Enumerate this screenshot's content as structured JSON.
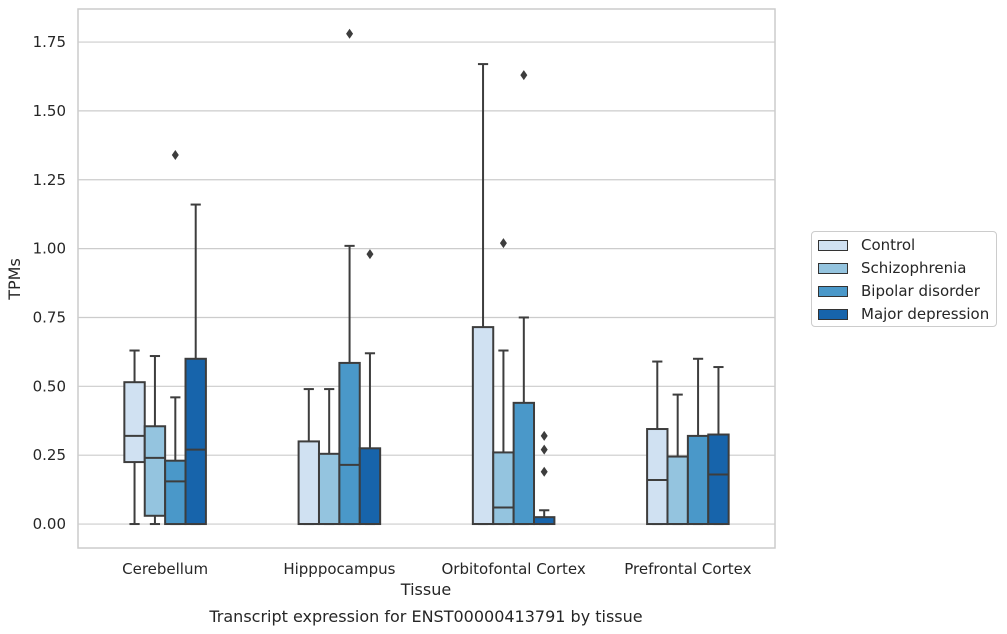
{
  "chart_data": {
    "type": "box",
    "title": "Transcript expression for ENST00000413791 by tissue",
    "xlabel": "Tissue",
    "ylabel": "TPMs",
    "ylim": [
      -0.087,
      1.87
    ],
    "yticks": [
      0.0,
      0.25,
      0.5,
      0.75,
      1.0,
      1.25,
      1.5,
      1.75
    ],
    "ytick_labels": [
      "0.00",
      "0.25",
      "0.50",
      "0.75",
      "1.00",
      "1.25",
      "1.50",
      "1.75"
    ],
    "categories": [
      "Cerebellum",
      "Hipppocampus",
      "Orbitofontal Cortex",
      "Prefrontal Cortex"
    ],
    "grid": "horizontal",
    "legend_position": "right",
    "series": [
      {
        "name": "Control",
        "color": "#d0e1f2",
        "boxes": [
          {
            "q1": 0.225,
            "median": 0.32,
            "q3": 0.515,
            "whisker_low": 0.0,
            "whisker_high": 0.63,
            "outliers": []
          },
          {
            "q1": 0.0,
            "median": 0.0,
            "q3": 0.3,
            "whisker_low": 0.0,
            "whisker_high": 0.49,
            "outliers": []
          },
          {
            "q1": 0.0,
            "median": 0.0,
            "q3": 0.715,
            "whisker_low": 0.0,
            "whisker_high": 1.67,
            "outliers": []
          },
          {
            "q1": 0.0,
            "median": 0.16,
            "q3": 0.345,
            "whisker_low": 0.0,
            "whisker_high": 0.59,
            "outliers": []
          }
        ]
      },
      {
        "name": "Schizophrenia",
        "color": "#94c4df",
        "boxes": [
          {
            "q1": 0.03,
            "median": 0.24,
            "q3": 0.355,
            "whisker_low": 0.0,
            "whisker_high": 0.61,
            "outliers": []
          },
          {
            "q1": 0.0,
            "median": 0.0,
            "q3": 0.255,
            "whisker_low": 0.0,
            "whisker_high": 0.49,
            "outliers": []
          },
          {
            "q1": 0.0,
            "median": 0.06,
            "q3": 0.26,
            "whisker_low": 0.0,
            "whisker_high": 0.63,
            "outliers": [
              1.02
            ]
          },
          {
            "q1": 0.0,
            "median": 0.0,
            "q3": 0.245,
            "whisker_low": 0.0,
            "whisker_high": 0.47,
            "outliers": []
          }
        ]
      },
      {
        "name": "Bipolar disorder",
        "color": "#4a98c9",
        "boxes": [
          {
            "q1": 0.0,
            "median": 0.155,
            "q3": 0.23,
            "whisker_low": 0.0,
            "whisker_high": 0.46,
            "outliers": [
              1.34
            ]
          },
          {
            "q1": 0.0,
            "median": 0.215,
            "q3": 0.585,
            "whisker_low": 0.0,
            "whisker_high": 1.01,
            "outliers": [
              1.78
            ]
          },
          {
            "q1": 0.0,
            "median": 0.0,
            "q3": 0.44,
            "whisker_low": 0.0,
            "whisker_high": 0.75,
            "outliers": [
              1.63
            ]
          },
          {
            "q1": 0.0,
            "median": 0.0,
            "q3": 0.32,
            "whisker_low": 0.0,
            "whisker_high": 0.6,
            "outliers": []
          }
        ]
      },
      {
        "name": "Major depression",
        "color": "#1764ab",
        "boxes": [
          {
            "q1": 0.0,
            "median": 0.27,
            "q3": 0.6,
            "whisker_low": 0.0,
            "whisker_high": 1.16,
            "outliers": []
          },
          {
            "q1": 0.0,
            "median": 0.0,
            "q3": 0.275,
            "whisker_low": 0.0,
            "whisker_high": 0.62,
            "outliers": [
              0.98
            ]
          },
          {
            "q1": 0.0,
            "median": 0.0,
            "q3": 0.025,
            "whisker_low": 0.0,
            "whisker_high": 0.05,
            "outliers": [
              0.19,
              0.27,
              0.32
            ]
          },
          {
            "q1": 0.0,
            "median": 0.18,
            "q3": 0.325,
            "whisker_low": 0.0,
            "whisker_high": 0.57,
            "outliers": []
          }
        ]
      }
    ]
  }
}
